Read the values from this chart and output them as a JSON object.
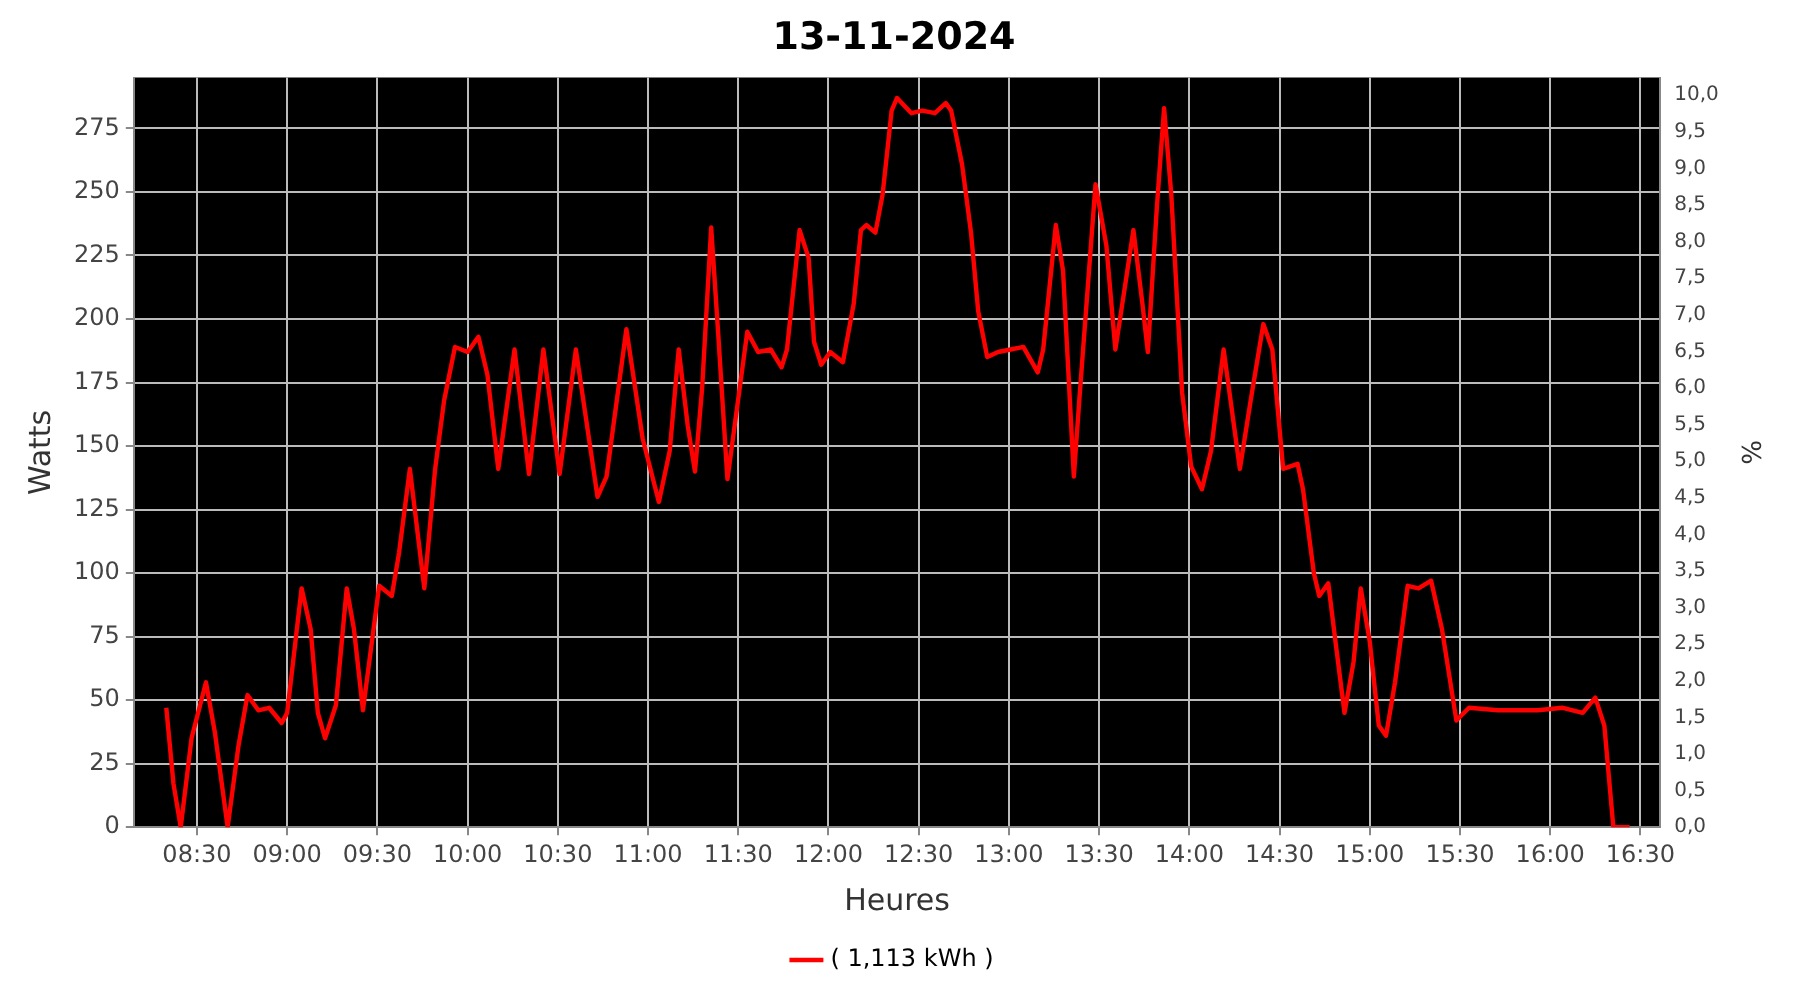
{
  "chart_data": {
    "type": "line",
    "title": "13-11-2024",
    "xlabel": "Heures",
    "ylabel": "Watts",
    "y2label": "%",
    "xlim": [
      8.15,
      16.61
    ],
    "xticks": [
      {
        "value": 8.5,
        "label": "08:30"
      },
      {
        "value": 9,
        "label": "09:00"
      },
      {
        "value": 9.5,
        "label": "09:30"
      },
      {
        "value": 10,
        "label": "10:00"
      },
      {
        "value": 10.5,
        "label": "10:30"
      },
      {
        "value": 11,
        "label": "11:00"
      },
      {
        "value": 11.5,
        "label": "11:30"
      },
      {
        "value": 12,
        "label": "12:00"
      },
      {
        "value": 12.5,
        "label": "12:30"
      },
      {
        "value": 13,
        "label": "13:00"
      },
      {
        "value": 13.5,
        "label": "13:30"
      },
      {
        "value": 14,
        "label": "14:00"
      },
      {
        "value": 14.5,
        "label": "14:30"
      },
      {
        "value": 15,
        "label": "15:00"
      },
      {
        "value": 15.5,
        "label": "15:30"
      },
      {
        "value": 16,
        "label": "16:00"
      },
      {
        "value": 16.5,
        "label": "16:30"
      }
    ],
    "ylim": [
      0,
      295
    ],
    "yticks": [
      0,
      25,
      50,
      75,
      100,
      125,
      150,
      175,
      200,
      225,
      250,
      275
    ],
    "y2lim": [
      0,
      10.24
    ],
    "y2ticks": [
      {
        "value": 0,
        "label": "0,0"
      },
      {
        "value": 0.5,
        "label": "0,5"
      },
      {
        "value": 1,
        "label": "1,0"
      },
      {
        "value": 1.5,
        "label": "1,5"
      },
      {
        "value": 2,
        "label": "2,0"
      },
      {
        "value": 2.5,
        "label": "2,5"
      },
      {
        "value": 3,
        "label": "3,0"
      },
      {
        "value": 3.5,
        "label": "3,5"
      },
      {
        "value": 4,
        "label": "4,0"
      },
      {
        "value": 4.5,
        "label": "4,5"
      },
      {
        "value": 5,
        "label": "5,0"
      },
      {
        "value": 5.5,
        "label": "5,5"
      },
      {
        "value": 6,
        "label": "6,0"
      },
      {
        "value": 6.5,
        "label": "6,5"
      },
      {
        "value": 7,
        "label": "7,0"
      },
      {
        "value": 7.5,
        "label": "7,5"
      },
      {
        "value": 8,
        "label": "8,0"
      },
      {
        "value": 8.5,
        "label": "8,5"
      },
      {
        "value": 9,
        "label": "9,0"
      },
      {
        "value": 9.5,
        "label": "9,5"
      },
      {
        "value": 10,
        "label": "10,0"
      }
    ],
    "grid": true,
    "legend": "bottom",
    "marker": "none",
    "line_style": "solid",
    "x": [
      8.33,
      8.37,
      8.41,
      8.47,
      8.55,
      8.6,
      8.67,
      8.73,
      8.78,
      8.84,
      8.9,
      8.97,
      9,
      9.08,
      9.13,
      9.17,
      9.21,
      9.27,
      9.33,
      9.37,
      9.42,
      9.51,
      9.58,
      9.62,
      9.68,
      9.76,
      9.82,
      9.87,
      9.93,
      10,
      10.06,
      10.11,
      10.17,
      10.26,
      10.34,
      10.42,
      10.51,
      10.6,
      10.72,
      10.77,
      10.88,
      10.97,
      11.06,
      11.12,
      11.17,
      11.22,
      11.26,
      11.3,
      11.35,
      11.39,
      11.44,
      11.48,
      11.55,
      11.61,
      11.68,
      11.74,
      11.77,
      11.84,
      11.89,
      11.92,
      11.96,
      12.01,
      12.08,
      12.14,
      12.18,
      12.21,
      12.26,
      12.3,
      12.35,
      12.38,
      12.46,
      12.52,
      12.59,
      12.65,
      12.68,
      12.74,
      12.79,
      12.83,
      12.88,
      12.94,
      13.01,
      13.08,
      13.16,
      13.19,
      13.26,
      13.3,
      13.36,
      13.39,
      13.48,
      13.54,
      13.59,
      13.65,
      13.69,
      13.74,
      13.77,
      13.82,
      13.86,
      13.9,
      13.96,
      14.01,
      14.07,
      14.12,
      14.19,
      14.28,
      14.34,
      14.41,
      14.46,
      14.52,
      14.6,
      14.63,
      14.69,
      14.72,
      14.77,
      14.81,
      14.86,
      14.91,
      14.95,
      15,
      15.05,
      15.09,
      15.14,
      15.21,
      15.27,
      15.34,
      15.4,
      15.48,
      15.55,
      15.71,
      15.93,
      16.07,
      16.18,
      16.25,
      16.3,
      16.35,
      16.44
    ],
    "series": [
      {
        "name": "( 1,113 kWh )",
        "color": "#ff0000",
        "values": [
          47,
          17,
          0,
          35,
          57,
          37,
          0,
          32,
          52,
          46,
          47,
          41,
          45,
          94,
          78,
          45,
          35,
          48,
          94,
          78,
          46,
          95,
          91,
          108,
          141,
          94,
          141,
          168,
          189,
          187,
          193,
          178,
          141,
          188,
          139,
          188,
          139,
          188,
          130,
          138,
          196,
          153,
          128,
          148,
          188,
          158,
          140,
          173,
          236,
          193,
          137,
          158,
          195,
          187,
          188,
          181,
          188,
          235,
          224,
          191,
          182,
          187,
          183,
          206,
          235,
          237,
          234,
          249,
          282,
          287,
          281,
          282,
          281,
          285,
          282,
          261,
          234,
          203,
          185,
          187,
          188,
          189,
          179,
          188,
          237,
          219,
          138,
          168,
          253,
          229,
          188,
          216,
          235,
          206,
          187,
          244,
          283,
          249,
          171,
          142,
          133,
          148,
          188,
          141,
          168,
          198,
          188,
          141,
          143,
          133,
          100,
          91,
          96,
          73,
          45,
          65,
          94,
          73,
          40,
          36,
          57,
          95,
          94,
          97,
          78,
          42,
          47,
          46,
          46,
          47,
          45,
          51,
          40,
          0,
          0
        ]
      }
    ]
  }
}
